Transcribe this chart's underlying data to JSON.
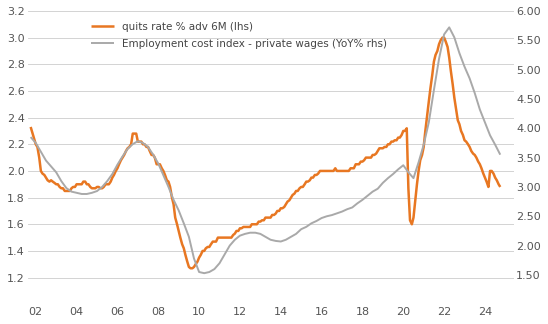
{
  "lhs_label": "quits rate % adv 6M (lhs)",
  "rhs_label": "Employment cost index - private wages (YoY% rhs)",
  "lhs_color": "#E87722",
  "rhs_color": "#A9A9A9",
  "lhs_linewidth": 1.8,
  "rhs_linewidth": 1.4,
  "ylim_lhs": [
    1.0,
    3.2
  ],
  "ylim_rhs": [
    1.0,
    6.0
  ],
  "yticks_lhs": [
    1.2,
    1.4,
    1.6,
    1.8,
    2.0,
    2.2,
    2.4,
    2.6,
    2.8,
    3.0,
    3.2
  ],
  "yticks_rhs": [
    1.5,
    2.0,
    2.5,
    3.0,
    3.5,
    4.0,
    4.5,
    5.0,
    5.5,
    6.0
  ],
  "xticks": [
    2002,
    2004,
    2006,
    2008,
    2010,
    2012,
    2014,
    2016,
    2018,
    2020,
    2022,
    2024
  ],
  "xtick_labels": [
    "02",
    "04",
    "06",
    "08",
    "10",
    "12",
    "14",
    "16",
    "18",
    "20",
    "22",
    "24"
  ],
  "background_color": "#FFFFFF",
  "grid_color": "#CCCCCC",
  "xlim": [
    2001.6,
    2025.4
  ],
  "lhs_data": [
    [
      2001.75,
      2.33
    ],
    [
      2002.0,
      2.2
    ],
    [
      2002.08,
      2.18
    ],
    [
      2002.17,
      2.1
    ],
    [
      2002.25,
      2.0
    ],
    [
      2002.33,
      1.98
    ],
    [
      2002.42,
      1.97
    ],
    [
      2002.5,
      1.95
    ],
    [
      2002.58,
      1.93
    ],
    [
      2002.67,
      1.92
    ],
    [
      2002.75,
      1.93
    ],
    [
      2002.83,
      1.92
    ],
    [
      2002.92,
      1.91
    ],
    [
      2003.0,
      1.9
    ],
    [
      2003.08,
      1.9
    ],
    [
      2003.17,
      1.88
    ],
    [
      2003.25,
      1.87
    ],
    [
      2003.33,
      1.87
    ],
    [
      2003.42,
      1.85
    ],
    [
      2003.5,
      1.85
    ],
    [
      2003.58,
      1.85
    ],
    [
      2003.67,
      1.85
    ],
    [
      2003.75,
      1.87
    ],
    [
      2003.83,
      1.88
    ],
    [
      2003.92,
      1.88
    ],
    [
      2004.0,
      1.9
    ],
    [
      2004.08,
      1.9
    ],
    [
      2004.17,
      1.9
    ],
    [
      2004.25,
      1.9
    ],
    [
      2004.33,
      1.92
    ],
    [
      2004.42,
      1.92
    ],
    [
      2004.5,
      1.9
    ],
    [
      2004.58,
      1.9
    ],
    [
      2004.67,
      1.88
    ],
    [
      2004.75,
      1.87
    ],
    [
      2004.83,
      1.87
    ],
    [
      2004.92,
      1.87
    ],
    [
      2005.0,
      1.88
    ],
    [
      2005.08,
      1.88
    ],
    [
      2005.17,
      1.87
    ],
    [
      2005.25,
      1.87
    ],
    [
      2005.33,
      1.88
    ],
    [
      2005.42,
      1.9
    ],
    [
      2005.5,
      1.9
    ],
    [
      2005.58,
      1.9
    ],
    [
      2005.67,
      1.92
    ],
    [
      2005.75,
      1.95
    ],
    [
      2005.83,
      1.97
    ],
    [
      2005.92,
      2.0
    ],
    [
      2006.0,
      2.02
    ],
    [
      2006.08,
      2.05
    ],
    [
      2006.17,
      2.08
    ],
    [
      2006.25,
      2.1
    ],
    [
      2006.33,
      2.12
    ],
    [
      2006.42,
      2.15
    ],
    [
      2006.5,
      2.17
    ],
    [
      2006.58,
      2.18
    ],
    [
      2006.67,
      2.2
    ],
    [
      2006.75,
      2.28
    ],
    [
      2006.83,
      2.28
    ],
    [
      2006.92,
      2.28
    ],
    [
      2007.0,
      2.22
    ],
    [
      2007.08,
      2.22
    ],
    [
      2007.17,
      2.22
    ],
    [
      2007.25,
      2.2
    ],
    [
      2007.33,
      2.2
    ],
    [
      2007.42,
      2.18
    ],
    [
      2007.5,
      2.18
    ],
    [
      2007.58,
      2.15
    ],
    [
      2007.67,
      2.12
    ],
    [
      2007.75,
      2.12
    ],
    [
      2007.83,
      2.1
    ],
    [
      2007.92,
      2.05
    ],
    [
      2008.0,
      2.05
    ],
    [
      2008.08,
      2.05
    ],
    [
      2008.17,
      2.02
    ],
    [
      2008.25,
      2.0
    ],
    [
      2008.33,
      1.97
    ],
    [
      2008.42,
      1.93
    ],
    [
      2008.5,
      1.92
    ],
    [
      2008.58,
      1.88
    ],
    [
      2008.67,
      1.8
    ],
    [
      2008.75,
      1.75
    ],
    [
      2008.83,
      1.65
    ],
    [
      2008.92,
      1.6
    ],
    [
      2009.0,
      1.55
    ],
    [
      2009.08,
      1.5
    ],
    [
      2009.17,
      1.45
    ],
    [
      2009.25,
      1.42
    ],
    [
      2009.33,
      1.37
    ],
    [
      2009.42,
      1.32
    ],
    [
      2009.5,
      1.28
    ],
    [
      2009.58,
      1.27
    ],
    [
      2009.67,
      1.27
    ],
    [
      2009.75,
      1.28
    ],
    [
      2009.83,
      1.3
    ],
    [
      2009.92,
      1.32
    ],
    [
      2010.0,
      1.35
    ],
    [
      2010.08,
      1.37
    ],
    [
      2010.17,
      1.4
    ],
    [
      2010.25,
      1.4
    ],
    [
      2010.33,
      1.42
    ],
    [
      2010.42,
      1.43
    ],
    [
      2010.5,
      1.43
    ],
    [
      2010.58,
      1.45
    ],
    [
      2010.67,
      1.47
    ],
    [
      2010.75,
      1.47
    ],
    [
      2010.83,
      1.47
    ],
    [
      2010.92,
      1.5
    ],
    [
      2011.0,
      1.5
    ],
    [
      2011.08,
      1.5
    ],
    [
      2011.17,
      1.5
    ],
    [
      2011.25,
      1.5
    ],
    [
      2011.33,
      1.5
    ],
    [
      2011.42,
      1.5
    ],
    [
      2011.5,
      1.5
    ],
    [
      2011.58,
      1.5
    ],
    [
      2011.67,
      1.52
    ],
    [
      2011.75,
      1.53
    ],
    [
      2011.83,
      1.55
    ],
    [
      2011.92,
      1.55
    ],
    [
      2012.0,
      1.57
    ],
    [
      2012.08,
      1.57
    ],
    [
      2012.17,
      1.58
    ],
    [
      2012.25,
      1.58
    ],
    [
      2012.33,
      1.58
    ],
    [
      2012.42,
      1.58
    ],
    [
      2012.5,
      1.58
    ],
    [
      2012.58,
      1.6
    ],
    [
      2012.67,
      1.6
    ],
    [
      2012.75,
      1.6
    ],
    [
      2012.83,
      1.6
    ],
    [
      2012.92,
      1.62
    ],
    [
      2013.0,
      1.62
    ],
    [
      2013.08,
      1.63
    ],
    [
      2013.17,
      1.63
    ],
    [
      2013.25,
      1.65
    ],
    [
      2013.33,
      1.65
    ],
    [
      2013.42,
      1.65
    ],
    [
      2013.5,
      1.65
    ],
    [
      2013.58,
      1.67
    ],
    [
      2013.67,
      1.67
    ],
    [
      2013.75,
      1.68
    ],
    [
      2013.83,
      1.7
    ],
    [
      2013.92,
      1.7
    ],
    [
      2014.0,
      1.72
    ],
    [
      2014.08,
      1.72
    ],
    [
      2014.17,
      1.73
    ],
    [
      2014.25,
      1.75
    ],
    [
      2014.33,
      1.77
    ],
    [
      2014.42,
      1.78
    ],
    [
      2014.5,
      1.8
    ],
    [
      2014.58,
      1.82
    ],
    [
      2014.67,
      1.83
    ],
    [
      2014.75,
      1.85
    ],
    [
      2014.83,
      1.85
    ],
    [
      2014.92,
      1.87
    ],
    [
      2015.0,
      1.88
    ],
    [
      2015.08,
      1.88
    ],
    [
      2015.17,
      1.9
    ],
    [
      2015.25,
      1.92
    ],
    [
      2015.33,
      1.92
    ],
    [
      2015.42,
      1.93
    ],
    [
      2015.5,
      1.95
    ],
    [
      2015.58,
      1.95
    ],
    [
      2015.67,
      1.97
    ],
    [
      2015.75,
      1.97
    ],
    [
      2015.83,
      1.98
    ],
    [
      2015.92,
      2.0
    ],
    [
      2016.0,
      2.0
    ],
    [
      2016.08,
      2.0
    ],
    [
      2016.17,
      2.0
    ],
    [
      2016.25,
      2.0
    ],
    [
      2016.33,
      2.0
    ],
    [
      2016.42,
      2.0
    ],
    [
      2016.5,
      2.0
    ],
    [
      2016.58,
      2.0
    ],
    [
      2016.67,
      2.02
    ],
    [
      2016.75,
      2.0
    ],
    [
      2016.83,
      2.0
    ],
    [
      2016.92,
      2.0
    ],
    [
      2017.0,
      2.0
    ],
    [
      2017.08,
      2.0
    ],
    [
      2017.17,
      2.0
    ],
    [
      2017.25,
      2.0
    ],
    [
      2017.33,
      2.0
    ],
    [
      2017.42,
      2.02
    ],
    [
      2017.5,
      2.02
    ],
    [
      2017.58,
      2.02
    ],
    [
      2017.67,
      2.05
    ],
    [
      2017.75,
      2.05
    ],
    [
      2017.83,
      2.05
    ],
    [
      2017.92,
      2.07
    ],
    [
      2018.0,
      2.07
    ],
    [
      2018.08,
      2.08
    ],
    [
      2018.17,
      2.1
    ],
    [
      2018.25,
      2.1
    ],
    [
      2018.33,
      2.1
    ],
    [
      2018.42,
      2.1
    ],
    [
      2018.5,
      2.12
    ],
    [
      2018.58,
      2.12
    ],
    [
      2018.67,
      2.13
    ],
    [
      2018.75,
      2.15
    ],
    [
      2018.83,
      2.17
    ],
    [
      2018.92,
      2.17
    ],
    [
      2019.0,
      2.17
    ],
    [
      2019.08,
      2.18
    ],
    [
      2019.17,
      2.18
    ],
    [
      2019.25,
      2.2
    ],
    [
      2019.33,
      2.2
    ],
    [
      2019.42,
      2.22
    ],
    [
      2019.5,
      2.22
    ],
    [
      2019.58,
      2.23
    ],
    [
      2019.67,
      2.23
    ],
    [
      2019.75,
      2.25
    ],
    [
      2019.83,
      2.25
    ],
    [
      2019.92,
      2.27
    ],
    [
      2020.0,
      2.3
    ],
    [
      2020.08,
      2.3
    ],
    [
      2020.17,
      2.32
    ],
    [
      2020.25,
      1.87
    ],
    [
      2020.33,
      1.63
    ],
    [
      2020.42,
      1.6
    ],
    [
      2020.5,
      1.65
    ],
    [
      2020.58,
      1.77
    ],
    [
      2020.67,
      1.9
    ],
    [
      2020.75,
      2.0
    ],
    [
      2020.83,
      2.08
    ],
    [
      2020.92,
      2.12
    ],
    [
      2021.0,
      2.18
    ],
    [
      2021.08,
      2.3
    ],
    [
      2021.17,
      2.42
    ],
    [
      2021.25,
      2.52
    ],
    [
      2021.33,
      2.62
    ],
    [
      2021.42,
      2.72
    ],
    [
      2021.5,
      2.82
    ],
    [
      2021.58,
      2.87
    ],
    [
      2021.67,
      2.9
    ],
    [
      2021.75,
      2.95
    ],
    [
      2021.83,
      2.98
    ],
    [
      2021.92,
      3.0
    ],
    [
      2022.0,
      3.0
    ],
    [
      2022.08,
      2.97
    ],
    [
      2022.17,
      2.93
    ],
    [
      2022.25,
      2.85
    ],
    [
      2022.33,
      2.75
    ],
    [
      2022.42,
      2.65
    ],
    [
      2022.5,
      2.55
    ],
    [
      2022.58,
      2.47
    ],
    [
      2022.67,
      2.38
    ],
    [
      2022.75,
      2.35
    ],
    [
      2022.83,
      2.3
    ],
    [
      2022.92,
      2.27
    ],
    [
      2023.0,
      2.23
    ],
    [
      2023.08,
      2.22
    ],
    [
      2023.17,
      2.2
    ],
    [
      2023.25,
      2.18
    ],
    [
      2023.33,
      2.15
    ],
    [
      2023.42,
      2.13
    ],
    [
      2023.5,
      2.12
    ],
    [
      2023.58,
      2.1
    ],
    [
      2023.67,
      2.07
    ],
    [
      2023.75,
      2.05
    ],
    [
      2023.83,
      2.02
    ],
    [
      2023.92,
      1.98
    ],
    [
      2024.0,
      1.95
    ],
    [
      2024.08,
      1.92
    ],
    [
      2024.17,
      1.88
    ],
    [
      2024.25,
      2.0
    ],
    [
      2024.33,
      2.0
    ],
    [
      2024.42,
      1.98
    ],
    [
      2024.5,
      1.95
    ],
    [
      2024.58,
      1.93
    ],
    [
      2024.67,
      1.9
    ],
    [
      2024.75,
      1.88
    ]
  ],
  "rhs_data": [
    [
      2001.75,
      3.85
    ],
    [
      2002.0,
      3.75
    ],
    [
      2002.25,
      3.6
    ],
    [
      2002.5,
      3.45
    ],
    [
      2002.75,
      3.35
    ],
    [
      2003.0,
      3.25
    ],
    [
      2003.25,
      3.1
    ],
    [
      2003.5,
      2.98
    ],
    [
      2003.75,
      2.92
    ],
    [
      2004.0,
      2.9
    ],
    [
      2004.25,
      2.88
    ],
    [
      2004.5,
      2.88
    ],
    [
      2004.75,
      2.9
    ],
    [
      2005.0,
      2.93
    ],
    [
      2005.25,
      3.0
    ],
    [
      2005.5,
      3.1
    ],
    [
      2005.75,
      3.22
    ],
    [
      2006.0,
      3.38
    ],
    [
      2006.25,
      3.52
    ],
    [
      2006.5,
      3.65
    ],
    [
      2006.75,
      3.73
    ],
    [
      2007.0,
      3.78
    ],
    [
      2007.25,
      3.75
    ],
    [
      2007.5,
      3.68
    ],
    [
      2007.75,
      3.55
    ],
    [
      2008.0,
      3.4
    ],
    [
      2008.25,
      3.2
    ],
    [
      2008.5,
      3.0
    ],
    [
      2008.75,
      2.78
    ],
    [
      2009.0,
      2.6
    ],
    [
      2009.25,
      2.38
    ],
    [
      2009.5,
      2.15
    ],
    [
      2009.75,
      1.78
    ],
    [
      2010.0,
      1.55
    ],
    [
      2010.25,
      1.53
    ],
    [
      2010.5,
      1.55
    ],
    [
      2010.75,
      1.6
    ],
    [
      2011.0,
      1.7
    ],
    [
      2011.25,
      1.85
    ],
    [
      2011.5,
      2.0
    ],
    [
      2011.75,
      2.1
    ],
    [
      2012.0,
      2.17
    ],
    [
      2012.25,
      2.2
    ],
    [
      2012.5,
      2.22
    ],
    [
      2012.75,
      2.22
    ],
    [
      2013.0,
      2.2
    ],
    [
      2013.25,
      2.15
    ],
    [
      2013.5,
      2.1
    ],
    [
      2013.75,
      2.08
    ],
    [
      2014.0,
      2.07
    ],
    [
      2014.25,
      2.1
    ],
    [
      2014.5,
      2.15
    ],
    [
      2014.75,
      2.2
    ],
    [
      2015.0,
      2.28
    ],
    [
      2015.25,
      2.32
    ],
    [
      2015.5,
      2.38
    ],
    [
      2015.75,
      2.42
    ],
    [
      2016.0,
      2.47
    ],
    [
      2016.25,
      2.5
    ],
    [
      2016.5,
      2.52
    ],
    [
      2016.75,
      2.55
    ],
    [
      2017.0,
      2.58
    ],
    [
      2017.25,
      2.62
    ],
    [
      2017.5,
      2.65
    ],
    [
      2017.75,
      2.72
    ],
    [
      2018.0,
      2.78
    ],
    [
      2018.25,
      2.85
    ],
    [
      2018.5,
      2.92
    ],
    [
      2018.75,
      2.97
    ],
    [
      2019.0,
      3.07
    ],
    [
      2019.25,
      3.15
    ],
    [
      2019.5,
      3.22
    ],
    [
      2019.75,
      3.3
    ],
    [
      2020.0,
      3.37
    ],
    [
      2020.25,
      3.25
    ],
    [
      2020.5,
      3.15
    ],
    [
      2020.75,
      3.42
    ],
    [
      2021.0,
      3.72
    ],
    [
      2021.25,
      4.1
    ],
    [
      2021.5,
      4.65
    ],
    [
      2021.75,
      5.18
    ],
    [
      2022.0,
      5.6
    ],
    [
      2022.25,
      5.72
    ],
    [
      2022.5,
      5.55
    ],
    [
      2022.75,
      5.28
    ],
    [
      2023.0,
      5.05
    ],
    [
      2023.25,
      4.85
    ],
    [
      2023.5,
      4.6
    ],
    [
      2023.75,
      4.32
    ],
    [
      2024.0,
      4.1
    ],
    [
      2024.25,
      3.88
    ],
    [
      2024.5,
      3.72
    ],
    [
      2024.75,
      3.55
    ]
  ]
}
